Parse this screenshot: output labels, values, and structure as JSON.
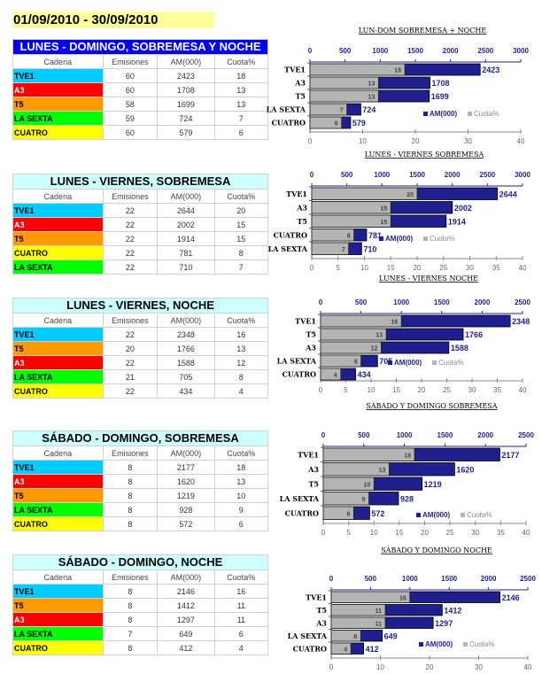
{
  "header": {
    "date_range": "01/09/2010 - 30/09/2010"
  },
  "colors": {
    "TVE1": "#00ccff",
    "A3": "#ff0000",
    "T5": "#ff9900",
    "LA SEXTA": "#00ff00",
    "CUATRO": "#ffff00",
    "title_main_bg": "#0000ff",
    "title_main_fg": "#ffffff",
    "title_bg": "#ccffff",
    "title_fg": "#000000",
    "am_bar": "#1f1f8f",
    "cuota_bar": "#b4b4b4",
    "axis_label": "#1f1f8f"
  },
  "columns": [
    "Cadena",
    "Emisiones",
    "AM(000)",
    "Cuota%"
  ],
  "legend": {
    "am": "AM(000)",
    "cuota": "Cuota%"
  },
  "tables": [
    {
      "title": "LUNES - DOMINGO, SOBREMESA Y NOCHE",
      "main": true,
      "rows": [
        {
          "cadena": "TVE1",
          "emisiones": "60",
          "am": "2423",
          "cuota": "18"
        },
        {
          "cadena": "A3",
          "emisiones": "60",
          "am": "1708",
          "cuota": "13"
        },
        {
          "cadena": "T5",
          "emisiones": "58",
          "am": "1699",
          "cuota": "13"
        },
        {
          "cadena": "LA SEXTA",
          "emisiones": "59",
          "am": "724",
          "cuota": "7"
        },
        {
          "cadena": "CUATRO",
          "emisiones": "60",
          "am": "579",
          "cuota": "6"
        }
      ]
    },
    {
      "title": "LUNES - VIERNES, SOBREMESA",
      "main": false,
      "rows": [
        {
          "cadena": "TVE1",
          "emisiones": "22",
          "am": "2644",
          "cuota": "20"
        },
        {
          "cadena": "A3",
          "emisiones": "22",
          "am": "2002",
          "cuota": "15"
        },
        {
          "cadena": "T5",
          "emisiones": "22",
          "am": "1914",
          "cuota": "15"
        },
        {
          "cadena": "CUATRO",
          "emisiones": "22",
          "am": "781",
          "cuota": "8"
        },
        {
          "cadena": "LA SEXTA",
          "emisiones": "22",
          "am": "710",
          "cuota": "7"
        }
      ]
    },
    {
      "title": "LUNES - VIERNES, NOCHE",
      "main": false,
      "rows": [
        {
          "cadena": "TVE1",
          "emisiones": "22",
          "am": "2348",
          "cuota": "16"
        },
        {
          "cadena": "T5",
          "emisiones": "20",
          "am": "1766",
          "cuota": "13"
        },
        {
          "cadena": "A3",
          "emisiones": "22",
          "am": "1588",
          "cuota": "12"
        },
        {
          "cadena": "LA SEXTA",
          "emisiones": "21",
          "am": "705",
          "cuota": "8"
        },
        {
          "cadena": "CUATRO",
          "emisiones": "22",
          "am": "434",
          "cuota": "4"
        }
      ]
    },
    {
      "title": "SÁBADO - DOMINGO, SOBREMESA",
      "main": false,
      "rows": [
        {
          "cadena": "TVE1",
          "emisiones": "8",
          "am": "2177",
          "cuota": "18"
        },
        {
          "cadena": "A3",
          "emisiones": "8",
          "am": "1620",
          "cuota": "13"
        },
        {
          "cadena": "T5",
          "emisiones": "8",
          "am": "1219",
          "cuota": "10"
        },
        {
          "cadena": "LA SEXTA",
          "emisiones": "8",
          "am": "928",
          "cuota": "9"
        },
        {
          "cadena": "CUATRO",
          "emisiones": "8",
          "am": "572",
          "cuota": "6"
        }
      ]
    },
    {
      "title": "SÁBADO - DOMINGO, NOCHE",
      "main": false,
      "rows": [
        {
          "cadena": "TVE1",
          "emisiones": "8",
          "am": "2146",
          "cuota": "16"
        },
        {
          "cadena": "T5",
          "emisiones": "8",
          "am": "1412",
          "cuota": "11"
        },
        {
          "cadena": "A3",
          "emisiones": "8",
          "am": "1297",
          "cuota": "11"
        },
        {
          "cadena": "LA SEXTA",
          "emisiones": "7",
          "am": "649",
          "cuota": "6"
        },
        {
          "cadena": "CUATRO",
          "emisiones": "8",
          "am": "412",
          "cuota": "4"
        }
      ]
    }
  ],
  "chart_data": [
    {
      "type": "bar",
      "title": "LUN-DOM SOBREMESA + NOCHE",
      "categories": [
        "TVE1",
        "A3",
        "T5",
        "LA SEXTA",
        "CUATRO"
      ],
      "series": [
        {
          "name": "AM(000)",
          "values": [
            2423,
            1708,
            1699,
            724,
            579
          ],
          "axis": "top",
          "xlim": [
            0,
            3000
          ],
          "ticks": [
            0,
            500,
            1000,
            1500,
            2000,
            2500,
            3000
          ]
        },
        {
          "name": "Cuota%",
          "values": [
            18,
            13,
            13,
            7,
            6
          ],
          "axis": "bottom",
          "xlim": [
            0,
            40
          ],
          "ticks": [
            0,
            10,
            20,
            30,
            40
          ]
        }
      ],
      "legend": "bottom-right",
      "grid": false
    },
    {
      "type": "bar",
      "title": "LUNES - VIERNES SOBREMESA",
      "categories": [
        "TVE1",
        "A3",
        "T5",
        "CUATRO",
        "LA SEXTA"
      ],
      "series": [
        {
          "name": "AM(000)",
          "values": [
            2644,
            2002,
            1914,
            781,
            710
          ],
          "axis": "top",
          "xlim": [
            0,
            3000
          ],
          "ticks": [
            0,
            500,
            1000,
            1500,
            2000,
            2500,
            3000
          ]
        },
        {
          "name": "Cuota%",
          "values": [
            20,
            15,
            15,
            8,
            7
          ],
          "axis": "bottom",
          "xlim": [
            0,
            40
          ],
          "ticks": [
            0,
            5,
            10,
            15,
            20,
            25,
            30,
            35,
            40
          ]
        }
      ],
      "legend": "bottom-right",
      "grid": false
    },
    {
      "type": "bar",
      "title": "LUNES - VIERNES  NOCHE",
      "categories": [
        "TVE1",
        "T5",
        "A3",
        "LA SEXTA",
        "CUATRO"
      ],
      "series": [
        {
          "name": "AM(000)",
          "values": [
            2348,
            1766,
            1588,
            705,
            434
          ],
          "axis": "top",
          "xlim": [
            0,
            2500
          ],
          "ticks": [
            0,
            500,
            1000,
            1500,
            2000,
            2500
          ]
        },
        {
          "name": "Cuota%",
          "values": [
            16,
            13,
            12,
            8,
            4
          ],
          "axis": "bottom",
          "xlim": [
            0,
            40
          ],
          "ticks": [
            0,
            5,
            10,
            15,
            20,
            25,
            30,
            35,
            40
          ]
        }
      ],
      "legend": "bottom-right",
      "grid": false
    },
    {
      "type": "bar",
      "title": "SÁBADO Y DOMINGO SOBREMESA",
      "categories": [
        "TVE1",
        "A3",
        "T5",
        "LA SEXTA",
        "CUATRO"
      ],
      "series": [
        {
          "name": "AM(000)",
          "values": [
            2177,
            1620,
            1219,
            928,
            572
          ],
          "axis": "top",
          "xlim": [
            0,
            2500
          ],
          "ticks": [
            0,
            500,
            1000,
            1500,
            2000,
            2500
          ]
        },
        {
          "name": "Cuota%",
          "values": [
            18,
            13,
            10,
            9,
            6
          ],
          "axis": "bottom",
          "xlim": [
            0,
            40
          ],
          "ticks": [
            0,
            5,
            10,
            15,
            20,
            25,
            30,
            35,
            40
          ]
        }
      ],
      "legend": "bottom-right",
      "grid": false
    },
    {
      "type": "bar",
      "title": "SÁBADO Y DOMINGO  NOCHE",
      "categories": [
        "TVE1",
        "T5",
        "A3",
        "LA SEXTA",
        "CUATRO"
      ],
      "series": [
        {
          "name": "AM(000)",
          "values": [
            2146,
            1412,
            1297,
            649,
            412
          ],
          "axis": "top",
          "xlim": [
            0,
            2500
          ],
          "ticks": [
            0,
            500,
            1000,
            1500,
            2000,
            2500
          ]
        },
        {
          "name": "Cuota%",
          "values": [
            16,
            11,
            11,
            6,
            4
          ],
          "axis": "bottom",
          "xlim": [
            0,
            40
          ],
          "ticks": [
            0,
            10,
            20,
            30,
            40
          ]
        }
      ],
      "legend": "bottom-right",
      "grid": false
    }
  ]
}
